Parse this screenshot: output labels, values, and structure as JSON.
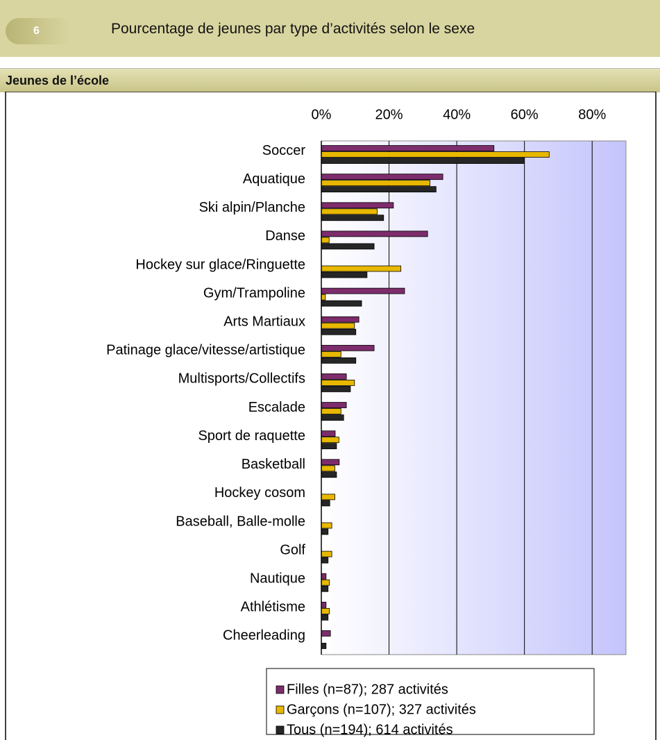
{
  "header": {
    "badge": "6",
    "title": "Pourcentage de jeunes par type d’activités selon le sexe"
  },
  "section": "Jeunes de l’école",
  "chart_data": {
    "type": "bar",
    "orientation": "horizontal",
    "categories": [
      "Soccer",
      "Aquatique",
      "Ski alpin/Planche",
      "Danse",
      "Hockey sur glace/Ringuette",
      "Gym/Trampoline",
      "Arts Martiaux",
      "Patinage glace/vitesse/artistique",
      "Multisports/Collectifs",
      "Escalade",
      "Sport de raquette",
      "Basketball",
      "Hockey cosom",
      "Baseball, Balle-molle",
      "Golf",
      "Nautique",
      "Athlétisme",
      "Cheerleading"
    ],
    "series": [
      {
        "name": "Filles (n=87); 287 activités",
        "color": "#7d2c6c",
        "values": [
          51,
          35.9,
          21.3,
          31.4,
          0,
          24.6,
          11.1,
          15.6,
          7.4,
          7.4,
          4.1,
          5.3,
          0,
          0,
          0,
          1.4,
          1.4,
          2.7
        ]
      },
      {
        "name": "Garçons (n=107); 327 activités",
        "color": "#e8b800",
        "values": [
          67.3,
          32.1,
          16.5,
          2.3,
          23.5,
          1.2,
          9.8,
          5.8,
          9.8,
          5.8,
          5.2,
          4.0,
          4.0,
          3.1,
          3.1,
          2.4,
          2.4,
          0
        ]
      },
      {
        "name": "Tous (n=194); 614 activités",
        "color": "#262626",
        "values": [
          60,
          33.9,
          18.4,
          15.6,
          13.5,
          11.9,
          10.2,
          10.2,
          8.6,
          6.6,
          4.5,
          4.5,
          2.5,
          2.0,
          2.0,
          2.0,
          2.0,
          1.4
        ]
      }
    ],
    "xlim": [
      0,
      90
    ],
    "xticks": [
      {
        "value": 0,
        "label": "0%"
      },
      {
        "value": 20,
        "label": "20%"
      },
      {
        "value": 40,
        "label": "40%"
      },
      {
        "value": 60,
        "label": "60%"
      },
      {
        "value": 80,
        "label": "80%"
      }
    ],
    "grid": true
  }
}
